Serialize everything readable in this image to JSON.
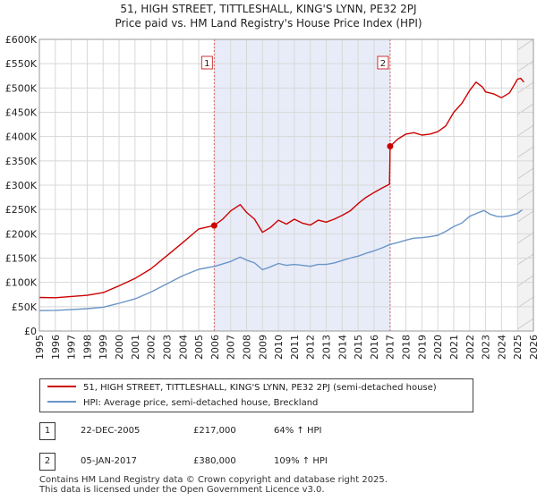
{
  "title": {
    "line1": "51, HIGH STREET, TITTLESHALL, KING'S LYNN, PE32 2PJ",
    "line2": "Price paid vs. HM Land Registry's House Price Index (HPI)"
  },
  "colors": {
    "property": "#cc0000",
    "hpi": "#6a95c8",
    "shade": "#e8ecf8",
    "grid": "#d8d8d8",
    "marker_line": "#e06666"
  },
  "chart_data": {
    "type": "line",
    "title": "Price paid vs. HM Land Registry's House Price Index (HPI)",
    "xlabel": "",
    "ylabel": "",
    "xlim": [
      1995,
      2026
    ],
    "ylim": [
      0,
      600000
    ],
    "y_ticks": [
      0,
      50000,
      100000,
      150000,
      200000,
      250000,
      300000,
      350000,
      400000,
      450000,
      500000,
      550000,
      600000
    ],
    "y_tick_labels": [
      "£0",
      "£50K",
      "£100K",
      "£150K",
      "£200K",
      "£250K",
      "£300K",
      "£350K",
      "£400K",
      "£450K",
      "£500K",
      "£550K",
      "£600K"
    ],
    "x_ticks": [
      1995,
      1996,
      1997,
      1998,
      1999,
      2000,
      2001,
      2002,
      2003,
      2004,
      2005,
      2006,
      2007,
      2008,
      2009,
      2010,
      2011,
      2012,
      2013,
      2014,
      2015,
      2016,
      2017,
      2018,
      2019,
      2020,
      2021,
      2022,
      2023,
      2024,
      2025,
      2026
    ],
    "x_tick_labels": [
      "1995",
      "1996",
      "1997",
      "1998",
      "1999",
      "2000",
      "2001",
      "2002",
      "2003",
      "2004",
      "2005",
      "2006",
      "2007",
      "2008",
      "2009",
      "2010",
      "2011",
      "2012",
      "2013",
      "2014",
      "2015",
      "2016",
      "2017",
      "2018",
      "2019",
      "2020",
      "2021",
      "2022",
      "2023",
      "2024",
      "2025",
      "2026"
    ],
    "grid": true,
    "shaded_period": [
      2005.97,
      2017.01
    ],
    "series": [
      {
        "name": "51, HIGH STREET, TITTLESHALL, KING'S LYNN, PE32 2PJ (semi-detached house)",
        "color": "#cc0000",
        "x": [
          1995,
          1996,
          1997,
          1998,
          1999,
          2000,
          2001,
          2002,
          2003,
          2004,
          2005,
          2005.97,
          2006.5,
          2007,
          2007.6,
          2008,
          2008.5,
          2009,
          2009.5,
          2010,
          2010.5,
          2011,
          2011.5,
          2012,
          2012.5,
          2013,
          2013.5,
          2014,
          2014.5,
          2015,
          2015.5,
          2016,
          2016.5,
          2016.97,
          2017.01,
          2017.5,
          2018,
          2018.5,
          2019,
          2019.5,
          2020,
          2020.5,
          2021,
          2021.5,
          2022,
          2022.4,
          2022.8,
          2023,
          2023.5,
          2024,
          2024.5,
          2025,
          2025.2,
          2025.4
        ],
        "values": [
          69000,
          68500,
          71000,
          73500,
          79000,
          93000,
          108000,
          128000,
          155000,
          182000,
          210000,
          217000,
          230000,
          247000,
          260000,
          244000,
          230000,
          203000,
          213000,
          228000,
          220000,
          230000,
          222000,
          218000,
          228000,
          224000,
          230000,
          238000,
          247000,
          262000,
          275000,
          285000,
          294000,
          302000,
          380000,
          395000,
          405000,
          408000,
          403000,
          405000,
          410000,
          422000,
          450000,
          468000,
          495000,
          512000,
          502000,
          492000,
          488000,
          480000,
          490000,
          518000,
          520000,
          512000
        ]
      },
      {
        "name": "HPI: Average price, semi-detached house, Breckland",
        "color": "#6a95c8",
        "x": [
          1995,
          1996,
          1997,
          1998,
          1999,
          2000,
          2001,
          2002,
          2003,
          2004,
          2005,
          2006,
          2007,
          2007.6,
          2008,
          2008.5,
          2009,
          2009.5,
          2010,
          2010.5,
          2011,
          2011.5,
          2012,
          2012.5,
          2013,
          2013.5,
          2014,
          2014.5,
          2015,
          2015.5,
          2016,
          2016.5,
          2017,
          2017.5,
          2018,
          2018.5,
          2019,
          2019.5,
          2020,
          2020.5,
          2021,
          2021.5,
          2022,
          2022.5,
          2022.9,
          2023.3,
          2023.7,
          2024,
          2024.5,
          2025,
          2025.3
        ],
        "values": [
          42000,
          42500,
          44000,
          46000,
          49000,
          57000,
          66000,
          80000,
          97000,
          114000,
          127000,
          133000,
          143000,
          152000,
          146000,
          140000,
          126000,
          132000,
          139000,
          135000,
          137000,
          135000,
          133000,
          137000,
          137000,
          140000,
          145000,
          150000,
          154000,
          160000,
          165000,
          171000,
          178000,
          182000,
          187000,
          191000,
          192000,
          194000,
          197000,
          205000,
          215000,
          222000,
          236000,
          243000,
          248000,
          240000,
          236000,
          235000,
          237000,
          242000,
          249000
        ]
      }
    ],
    "sales": [
      {
        "id": "1",
        "x": 2005.97,
        "value": 217000,
        "date": "22-DEC-2005",
        "price": "£217,000",
        "hpi": "64% ↑ HPI"
      },
      {
        "id": "2",
        "x": 2017.01,
        "value": 380000,
        "date": "05-JAN-2017",
        "price": "£380,000",
        "hpi": "109% ↑ HPI"
      }
    ],
    "future_from": 2025.0
  },
  "legend": {
    "property_label": "51, HIGH STREET, TITTLESHALL, KING'S LYNN, PE32 2PJ (semi-detached house)",
    "hpi_label": "HPI: Average price, semi-detached house, Breckland"
  },
  "footer": {
    "line1": "Contains HM Land Registry data © Crown copyright and database right 2025.",
    "line2": "This data is licensed under the Open Government Licence v3.0."
  }
}
